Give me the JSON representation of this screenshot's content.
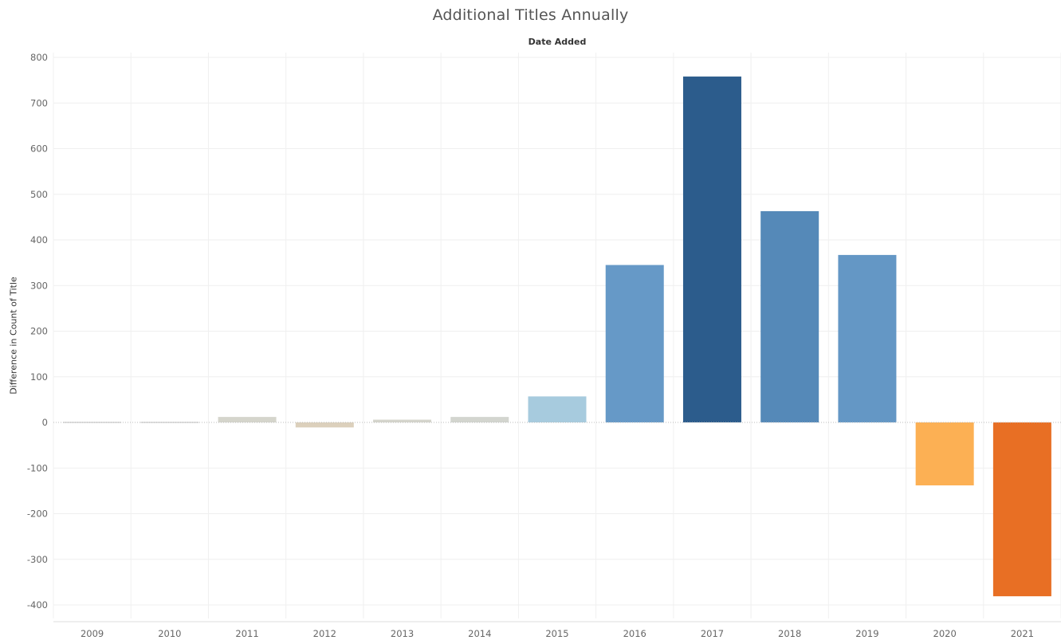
{
  "chart_data": {
    "type": "bar",
    "title": "Additional Titles Annually",
    "header": "Date Added",
    "ylabel": "Difference in Count of Title",
    "xlabel": "",
    "ylim": [
      -420,
      820
    ],
    "yticks": [
      800,
      700,
      600,
      500,
      400,
      300,
      200,
      100,
      0,
      -100,
      -200,
      -300,
      -400
    ],
    "categories": [
      "2009",
      "2010",
      "2011",
      "2012",
      "2013",
      "2014",
      "2015",
      "2016",
      "2017",
      "2018",
      "2019",
      "2020",
      "2021"
    ],
    "values": [
      1,
      1,
      12,
      -11,
      6,
      12,
      57,
      345,
      758,
      463,
      367,
      -138,
      -381
    ],
    "colors": [
      "#d3d3d3",
      "#d3d3d3",
      "#d5d5cc",
      "#dcd0bc",
      "#d5d5cc",
      "#d3d5cf",
      "#a7cbde",
      "#6699c7",
      "#2c5c8c",
      "#5589b8",
      "#6497c5",
      "#fcb054",
      "#e86f24"
    ],
    "grid": true,
    "legend": "none"
  }
}
